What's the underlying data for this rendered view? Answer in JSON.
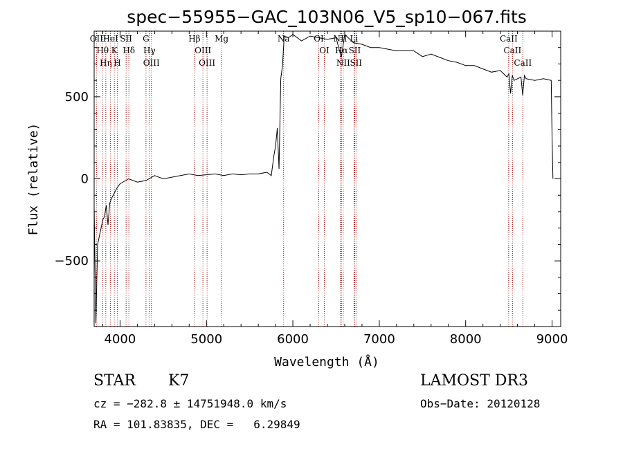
{
  "chart_data": {
    "type": "line",
    "title": "spec−55955−GAC_103N06_V5_sp10−067.fits",
    "xlabel": "Wavelength (Å)",
    "ylabel": "Flux (relative)",
    "xlim": [
      3700,
      9100
    ],
    "ylim": [
      -900,
      900
    ],
    "x_ticks": [
      4000,
      5000,
      6000,
      7000,
      8000,
      9000
    ],
    "y_ticks": [
      -500,
      0,
      500
    ],
    "y_tick_labels": [
      "−500",
      "0",
      "500"
    ],
    "series": [
      {
        "name": "flux",
        "x": [
          3700,
          3720,
          3740,
          3760,
          3780,
          3800,
          3820,
          3840,
          3860,
          3880,
          3900,
          3930,
          3960,
          4000,
          4100,
          4200,
          4300,
          4400,
          4500,
          4600,
          4700,
          4800,
          4900,
          5000,
          5100,
          5200,
          5300,
          5400,
          5500,
          5600,
          5700,
          5750,
          5780,
          5800,
          5820,
          5840,
          5860,
          5880,
          5900,
          5950,
          6000,
          6100,
          6200,
          6300,
          6400,
          6500,
          6560,
          6600,
          6700,
          6800,
          6900,
          7000,
          7200,
          7400,
          7500,
          7600,
          7700,
          7800,
          7900,
          8000,
          8100,
          8200,
          8300,
          8400,
          8480,
          8500,
          8520,
          8540,
          8560,
          8600,
          8640,
          8660,
          8680,
          8700,
          8800,
          8900,
          8990,
          9000,
          9010
        ],
        "y": [
          -170,
          -880,
          -400,
          -350,
          -300,
          -250,
          -230,
          -160,
          -280,
          -150,
          -120,
          -90,
          -60,
          -30,
          0,
          -20,
          -10,
          20,
          0,
          10,
          20,
          30,
          20,
          25,
          30,
          20,
          30,
          25,
          30,
          30,
          40,
          20,
          140,
          200,
          310,
          60,
          610,
          690,
          870,
          860,
          880,
          840,
          870,
          860,
          850,
          860,
          740,
          880,
          830,
          820,
          800,
          800,
          780,
          780,
          745,
          760,
          740,
          720,
          710,
          690,
          690,
          670,
          650,
          660,
          620,
          640,
          520,
          630,
          600,
          610,
          620,
          510,
          630,
          610,
          600,
          610,
          600,
          260,
          0
        ]
      }
    ],
    "reference_lines": [
      {
        "label": "OII",
        "x": 3727
      },
      {
        "label": "Hθ",
        "x": 3798
      },
      {
        "label": "Hη",
        "x": 3835
      },
      {
        "label": "HeI",
        "x": 3889
      },
      {
        "label": "K",
        "x": 3934
      },
      {
        "label": "H",
        "x": 3968
      },
      {
        "label": "SII",
        "x": 4070
      },
      {
        "label": "Hδ",
        "x": 4102
      },
      {
        "label": "G",
        "x": 4300
      },
      {
        "label": "Hγ",
        "x": 4340
      },
      {
        "label": "OIII",
        "x": 4363
      },
      {
        "label": "Hβ",
        "x": 4861
      },
      {
        "label": "OIII",
        "x": 4959
      },
      {
        "label": "OIII",
        "x": 5007
      },
      {
        "label": "Mg",
        "x": 5175
      },
      {
        "label": "Na",
        "x": 5893
      },
      {
        "label": "OI",
        "x": 6300
      },
      {
        "label": "OI",
        "x": 6364
      },
      {
        "label": "NII",
        "x": 6548
      },
      {
        "label": "Hα",
        "x": 6563
      },
      {
        "label": "NII",
        "x": 6583
      },
      {
        "label": "Li",
        "x": 6708
      },
      {
        "label": "SII",
        "x": 6716
      },
      {
        "label": "SII",
        "x": 6731
      },
      {
        "label": "CaII",
        "x": 8498
      },
      {
        "label": "CaII",
        "x": 8542
      },
      {
        "label": "CaII",
        "x": 8662
      }
    ]
  },
  "info": {
    "object_class": "STAR",
    "subclass": "K7",
    "release": "LAMOST DR3",
    "cz_line": "cz = −282.8 ± 14751948.0 km/s",
    "obs_date": "Obs−Date: 20120128",
    "coords": "RA = 101.83835, DEC =   6.29849"
  },
  "colors": {
    "spectrum": "#000000",
    "reference_line": "#aa0000",
    "axes": "#000000"
  }
}
